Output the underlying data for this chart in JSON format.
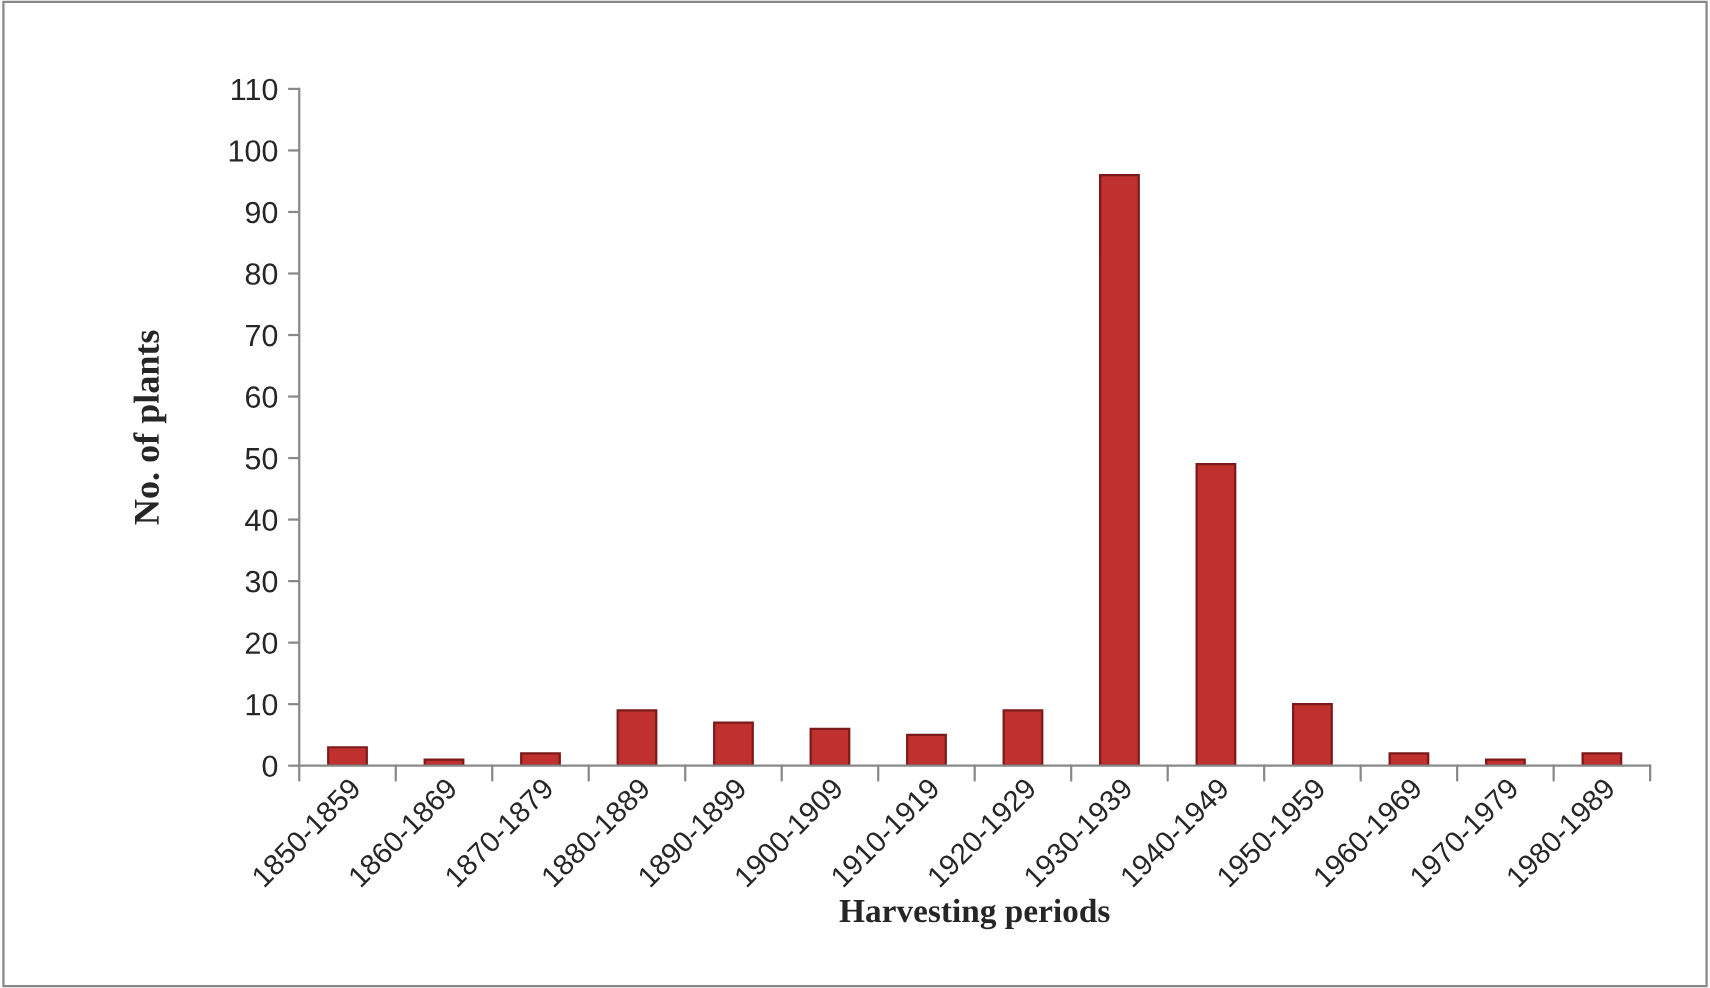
{
  "chart_data": {
    "type": "bar",
    "xlabel": "Harvesting periods",
    "ylabel": "No. of plants",
    "categories": [
      "1850-1859",
      "1860-1869",
      "1870-1879",
      "1880-1889",
      "1890-1899",
      "1900-1909",
      "1910-1919",
      "1920-1929",
      "1930-1939",
      "1940-1949",
      "1950-1959",
      "1960-1969",
      "1970-1979",
      "1980-1989"
    ],
    "values": [
      3,
      1,
      2,
      9,
      7,
      6,
      5,
      9,
      96,
      49,
      10,
      2,
      1,
      2
    ],
    "color": "#c0302f",
    "ylim": [
      0,
      110
    ],
    "yticks": [
      0,
      10,
      20,
      30,
      40,
      50,
      60,
      70,
      80,
      90,
      100,
      110
    ],
    "grid": false,
    "legend": false
  }
}
